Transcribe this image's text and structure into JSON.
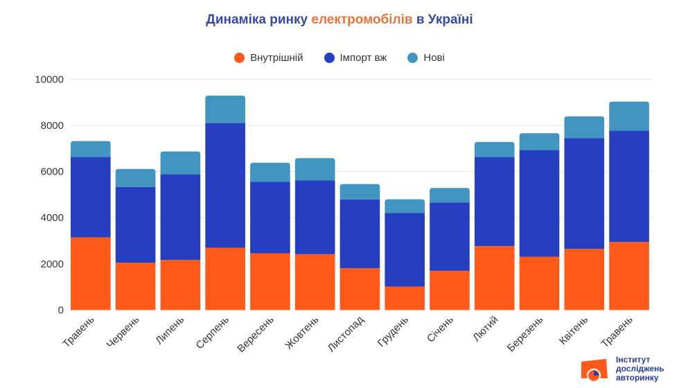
{
  "title": {
    "part1": "Динаміка ринку ",
    "part2": "електромобілів",
    "part3": " в Україні"
  },
  "colors": {
    "internal": "#ff5a1a",
    "import": "#253fc0",
    "new": "#4295c0",
    "title": "#3548a8",
    "accent": "#e8743b",
    "grid": "#e3e3e3"
  },
  "logo": {
    "line1": "Інститут",
    "line2": "досліджень",
    "line3": "авторинку"
  },
  "chart_data": {
    "type": "bar",
    "stacked": true,
    "title": "Динаміка ринку електромобілів в Україні",
    "xlabel": "",
    "ylabel": "",
    "ylim": [
      0,
      10000
    ],
    "yticks": [
      0,
      2000,
      4000,
      6000,
      8000,
      10000
    ],
    "grid": true,
    "legend_position": "top-center",
    "categories": [
      "Травень",
      "Червень",
      "Липень",
      "Серпень",
      "Вересень",
      "Жовтень",
      "Листопад",
      "Грудень",
      "Січень",
      "Лютий",
      "Березень",
      "Квітень",
      "Травень"
    ],
    "series": [
      {
        "name": "Внутрішній",
        "values": [
          3150,
          2050,
          2170,
          2700,
          2460,
          2420,
          1810,
          1020,
          1700,
          2770,
          2310,
          2650,
          2950
        ]
      },
      {
        "name": "Імпорт вж",
        "values": [
          3480,
          3280,
          3710,
          5400,
          3100,
          3200,
          2980,
          3180,
          2960,
          3860,
          4620,
          4800,
          4820
        ]
      },
      {
        "name": "Нові",
        "values": [
          690,
          780,
          990,
          1190,
          820,
          960,
          670,
          600,
          630,
          650,
          730,
          940,
          1260
        ]
      }
    ]
  }
}
